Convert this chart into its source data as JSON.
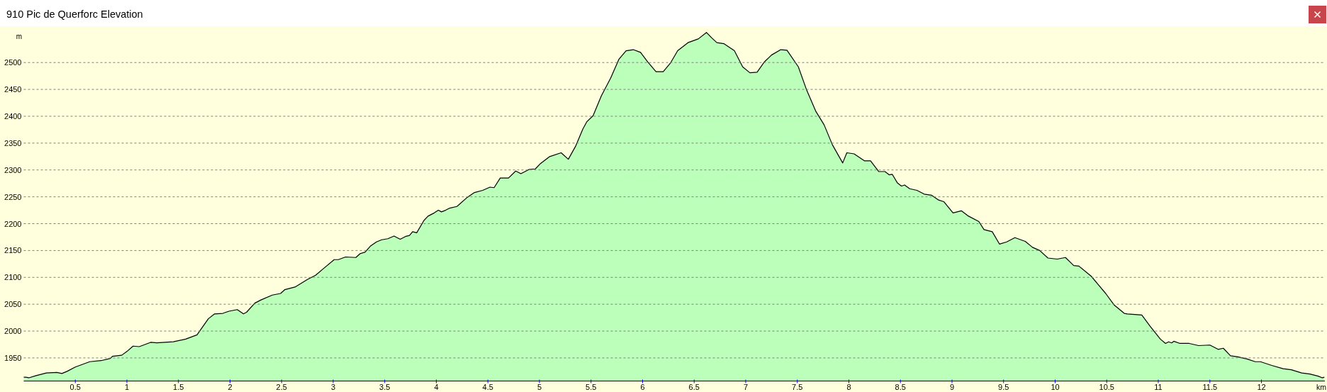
{
  "chart_data": {
    "type": "area",
    "title": "910 Pic de Querforc Elevation",
    "xlabel": "km",
    "ylabel": "m",
    "color": "#bbffbb",
    "grid": "y",
    "xlim": [
      0,
      12.615
    ],
    "ylim": [
      1907,
      2568
    ],
    "xticks": [
      0.5,
      1,
      1.5,
      2,
      2.5,
      3,
      3.5,
      4,
      4.5,
      5,
      5.5,
      6,
      6.5,
      7,
      7.5,
      8,
      8.5,
      9,
      9.5,
      10,
      10.5,
      11,
      11.5,
      12
    ],
    "yticks": [
      1950,
      2000,
      2050,
      2100,
      2150,
      2200,
      2250,
      2300,
      2350,
      2400,
      2450,
      2500
    ],
    "x": [
      0,
      0.02,
      0.05,
      0.12,
      0.22,
      0.32,
      0.37,
      0.42,
      0.5,
      0.64,
      0.75,
      0.84,
      0.86,
      0.95,
      1.0,
      1.06,
      1.12,
      1.23,
      1.29,
      1.45,
      1.57,
      1.68,
      1.79,
      1.85,
      1.93,
      1.99,
      2.07,
      2.13,
      2.16,
      2.24,
      2.3,
      2.41,
      2.49,
      2.53,
      2.63,
      2.75,
      2.83,
      2.91,
      3.01,
      3.05,
      3.12,
      3.22,
      3.26,
      3.31,
      3.36,
      3.42,
      3.47,
      3.53,
      3.59,
      3.65,
      3.7,
      3.74,
      3.77,
      3.81,
      3.88,
      3.92,
      3.98,
      4.02,
      4.05,
      4.09,
      4.13,
      4.2,
      4.3,
      4.37,
      4.45,
      4.52,
      4.56,
      4.62,
      4.7,
      4.77,
      4.82,
      4.9,
      4.96,
      5.01,
      5.1,
      5.21,
      5.28,
      5.35,
      5.42,
      5.46,
      5.52,
      5.6,
      5.69,
      5.77,
      5.84,
      5.91,
      5.98,
      6.05,
      6.13,
      6.2,
      6.27,
      6.34,
      6.44,
      6.54,
      6.62,
      6.67,
      6.72,
      6.79,
      6.89,
      6.97,
      7.04,
      7.11,
      7.18,
      7.25,
      7.34,
      7.4,
      7.51,
      7.59,
      7.68,
      7.76,
      7.84,
      7.94,
      7.98,
      8.05,
      8.15,
      8.21,
      8.29,
      8.35,
      8.39,
      8.42,
      8.47,
      8.51,
      8.54,
      8.59,
      8.66,
      8.73,
      8.8,
      8.87,
      8.92,
      9.01,
      9.09,
      9.16,
      9.26,
      9.31,
      9.39,
      9.46,
      9.53,
      9.61,
      9.71,
      9.78,
      9.85,
      9.93,
      10.02,
      10.1,
      10.18,
      10.23,
      10.35,
      10.42,
      10.49,
      10.57,
      10.67,
      10.7,
      10.84,
      10.92,
      11.02,
      11.07,
      11.1,
      11.13,
      11.15,
      11.21,
      11.3,
      11.39,
      11.5,
      11.58,
      11.63,
      11.7,
      11.77,
      11.86,
      11.94,
      11.99,
      12.1,
      12.21,
      12.29,
      12.39,
      12.47,
      12.55,
      12.59,
      12.61
    ],
    "values": [
      1914,
      1914,
      1913,
      1917,
      1922,
      1923,
      1921,
      1925,
      1933,
      1943,
      1945,
      1949,
      1953,
      1955,
      1962,
      1972,
      1971,
      1979,
      1978,
      1980,
      1985,
      1993,
      2023,
      2032,
      2033,
      2037,
      2040,
      2032,
      2035,
      2052,
      2058,
      2067,
      2070,
      2077,
      2082,
      2096,
      2104,
      2117,
      2133,
      2133,
      2138,
      2137,
      2144,
      2147,
      2158,
      2166,
      2170,
      2172,
      2177,
      2171,
      2176,
      2178,
      2185,
      2183,
      2206,
      2214,
      2220,
      2225,
      2222,
      2225,
      2229,
      2232,
      2249,
      2258,
      2262,
      2268,
      2267,
      2285,
      2285,
      2298,
      2293,
      2301,
      2302,
      2312,
      2325,
      2332,
      2320,
      2344,
      2376,
      2390,
      2401,
      2438,
      2471,
      2506,
      2522,
      2524,
      2519,
      2501,
      2483,
      2483,
      2499,
      2522,
      2537,
      2544,
      2556,
      2546,
      2537,
      2535,
      2522,
      2492,
      2481,
      2482,
      2501,
      2514,
      2524,
      2523,
      2492,
      2449,
      2409,
      2384,
      2347,
      2313,
      2332,
      2330,
      2317,
      2317,
      2297,
      2297,
      2291,
      2292,
      2276,
      2270,
      2272,
      2265,
      2262,
      2255,
      2253,
      2244,
      2241,
      2220,
      2224,
      2214,
      2204,
      2189,
      2185,
      2162,
      2166,
      2174,
      2167,
      2156,
      2150,
      2136,
      2134,
      2137,
      2122,
      2121,
      2102,
      2086,
      2070,
      2049,
      2033,
      2032,
      2030,
      2009,
      1985,
      1977,
      1980,
      1978,
      1981,
      1977,
      1977,
      1973,
      1974,
      1966,
      1968,
      1954,
      1952,
      1948,
      1943,
      1943,
      1936,
      1930,
      1928,
      1922,
      1920,
      1916,
      1913,
      1914
    ]
  }
}
